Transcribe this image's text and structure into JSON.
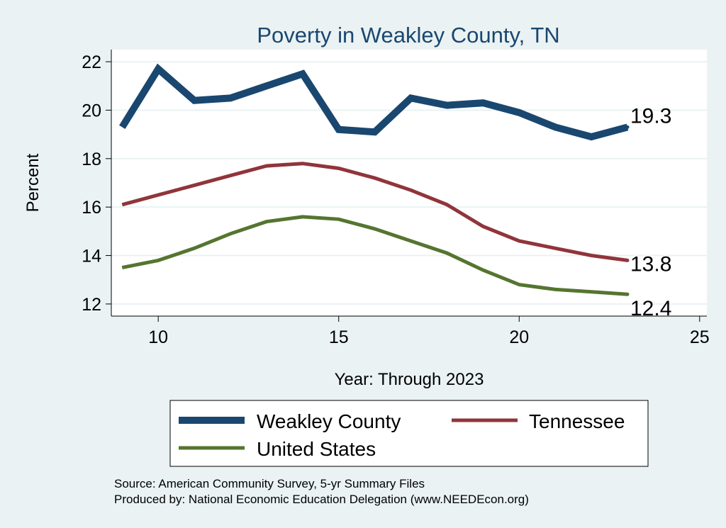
{
  "chart_data": {
    "type": "line",
    "title": "Poverty in Weakley County, TN",
    "xlabel": "Year: Through 2023",
    "ylabel": "Percent",
    "xlim": [
      8.7,
      25.2
    ],
    "ylim": [
      11.5,
      22.5
    ],
    "xticks": [
      10,
      15,
      20,
      25
    ],
    "yticks": [
      12,
      14,
      16,
      18,
      20,
      22
    ],
    "grid": true,
    "x": [
      9,
      10,
      11,
      12,
      13,
      14,
      15,
      16,
      17,
      18,
      19,
      20,
      21,
      22,
      23
    ],
    "series": [
      {
        "name": "Weakley County",
        "color": "#1a476f",
        "width": "thick",
        "values": [
          19.3,
          21.7,
          20.4,
          20.5,
          21.0,
          21.5,
          19.2,
          19.1,
          20.5,
          20.2,
          20.3,
          19.9,
          19.3,
          18.9,
          19.3
        ],
        "end_label": "19.3"
      },
      {
        "name": "Tennessee",
        "color": "#90353b",
        "width": "medium",
        "values": [
          16.1,
          16.5,
          16.9,
          17.3,
          17.7,
          17.8,
          17.6,
          17.2,
          16.7,
          16.1,
          15.2,
          14.6,
          14.3,
          14.0,
          13.8
        ],
        "end_label": "13.8"
      },
      {
        "name": "United States",
        "color": "#55752f",
        "width": "medium",
        "values": [
          13.5,
          13.8,
          14.3,
          14.9,
          15.4,
          15.6,
          15.5,
          15.1,
          14.6,
          14.1,
          13.4,
          12.8,
          12.6,
          12.5,
          12.4
        ],
        "end_label": "12.4"
      }
    ],
    "legend": {
      "position": "bottom",
      "entries": [
        "Weakley County",
        "Tennessee",
        "United States"
      ]
    },
    "notes": [
      "Source: American Community Survey, 5-yr Summary Files",
      "Produced by: National Economic Education Delegation (www.NEEDEcon.org)"
    ]
  },
  "colors": {
    "background": "#eaf2f3",
    "plot_background": "#ffffff",
    "title": "#1a476f",
    "grid": "#eaf2f3"
  }
}
